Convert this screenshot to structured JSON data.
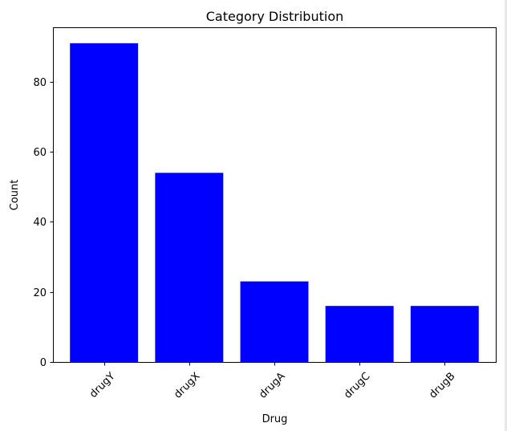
{
  "chart_data": {
    "type": "bar",
    "title": "Category Distribution",
    "xlabel": "Drug",
    "ylabel": "Count",
    "categories": [
      "drugY",
      "drugX",
      "drugA",
      "drugC",
      "drugB"
    ],
    "values": [
      91,
      54,
      23,
      16,
      16
    ],
    "ylim": [
      0,
      95.55
    ],
    "yticks": [
      0,
      20,
      40,
      60,
      80
    ],
    "bar_color": "#0000ff",
    "grid": false,
    "legend": "none"
  }
}
